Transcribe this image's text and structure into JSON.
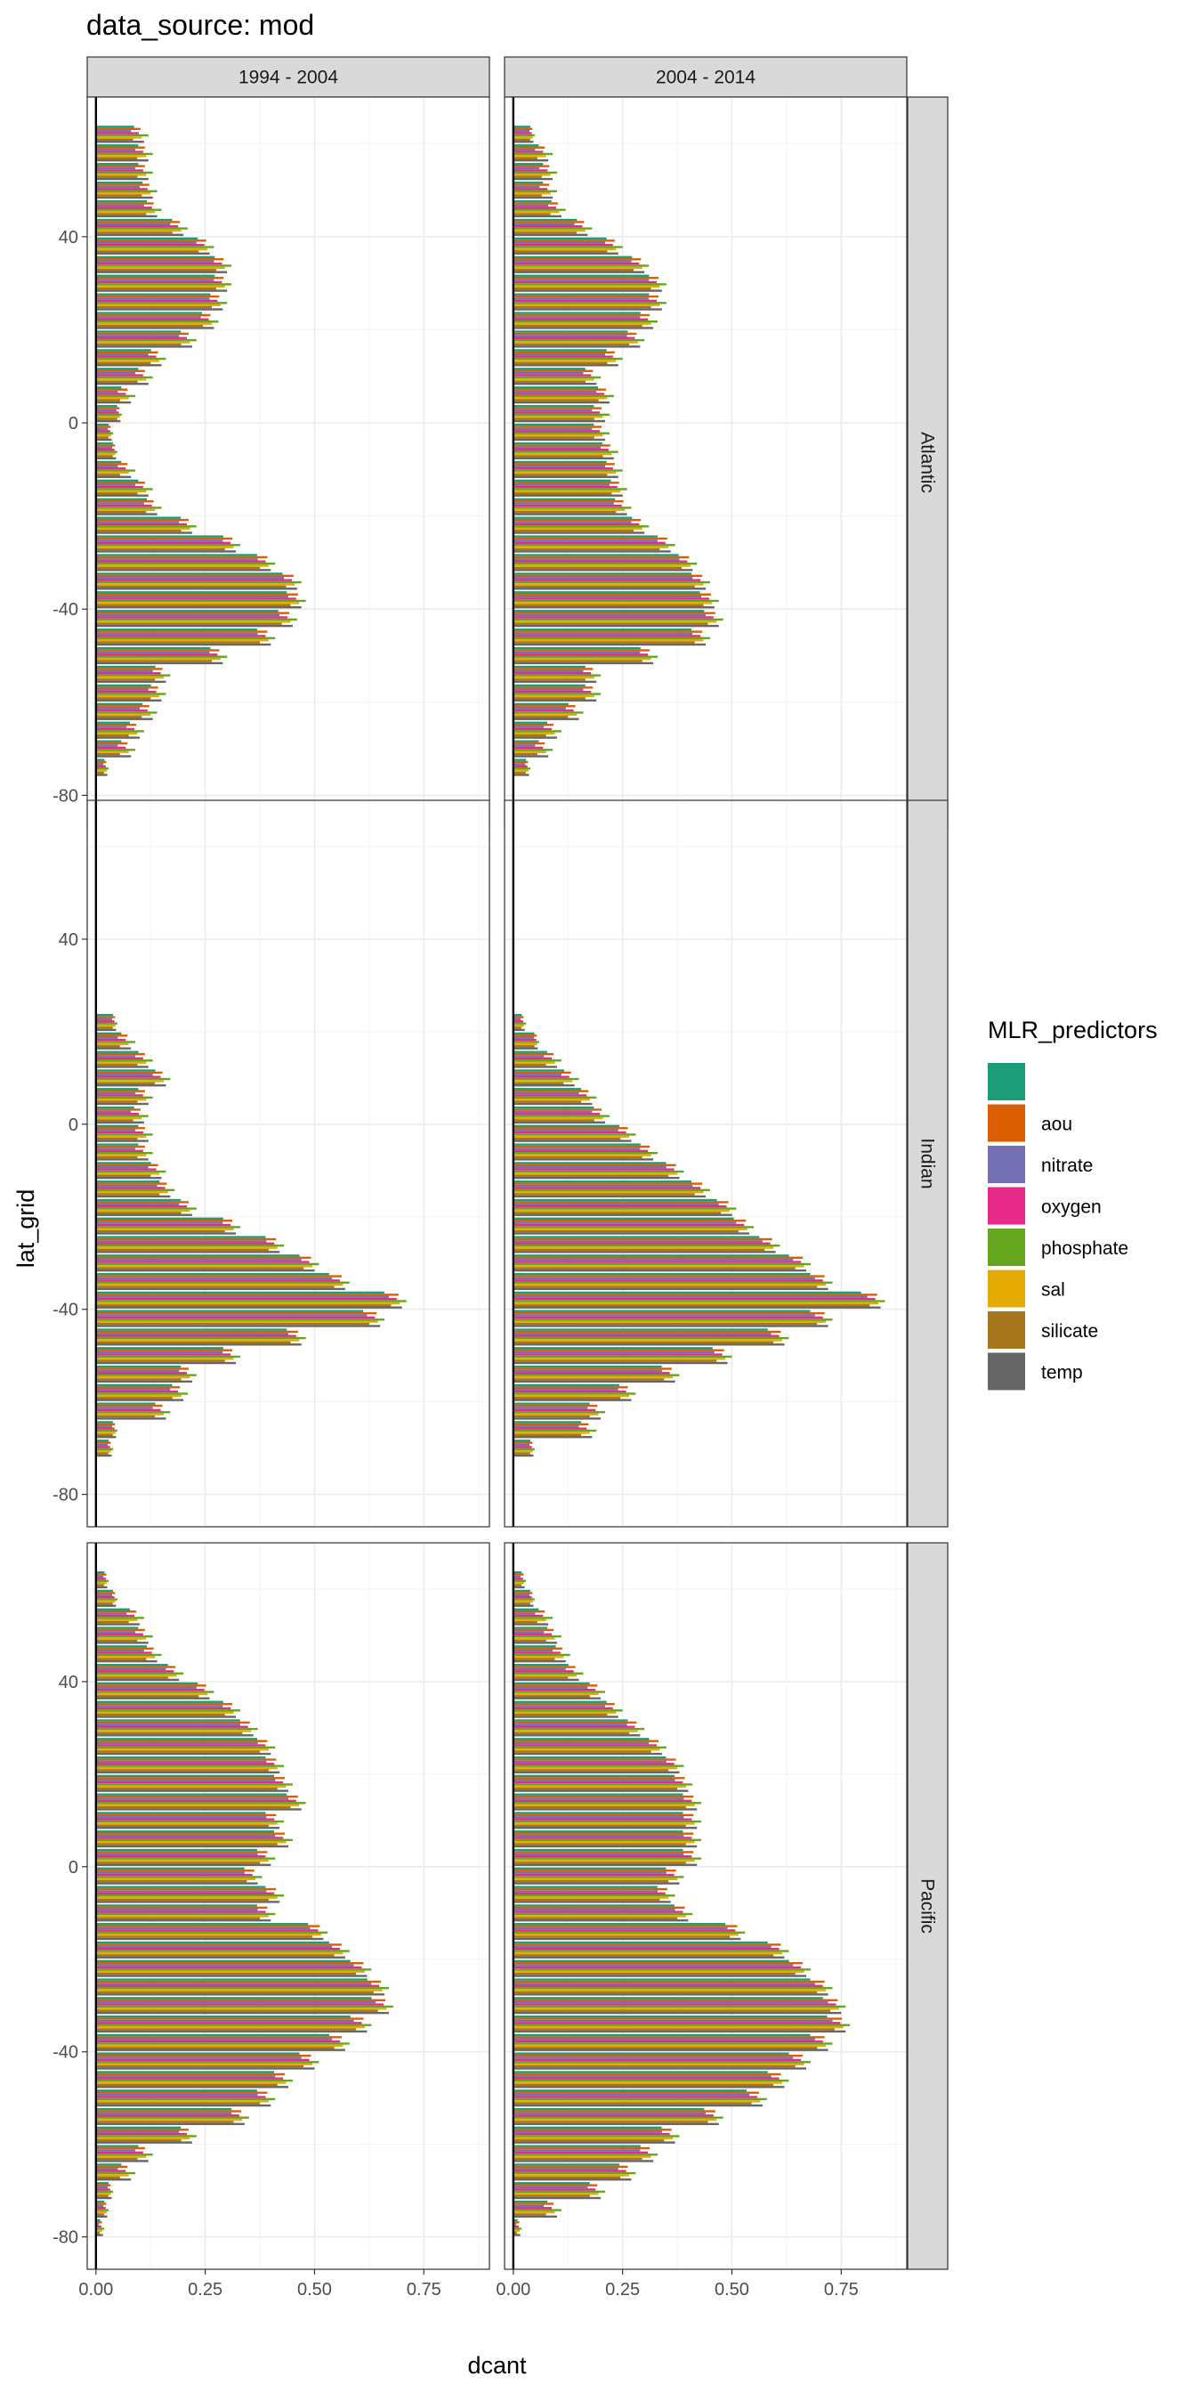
{
  "title": "data_source: mod",
  "chart_data": {
    "type": "bar",
    "orientation": "horizontal",
    "xlabel": "dcant",
    "ylabel": "lat_grid",
    "xlim": [
      -0.02,
      0.9
    ],
    "ylim": [
      -87,
      70
    ],
    "x_ticks": [
      0,
      0.25,
      0.5,
      0.75
    ],
    "x_tick_labels": [
      "0.00",
      "0.25",
      "0.50",
      "0.75"
    ],
    "y_ticks": [
      -80,
      -40,
      0,
      40
    ],
    "y_tick_labels": [
      "-80",
      "-40",
      "0",
      "40"
    ],
    "grid": true,
    "columns": [
      "1994 - 2004",
      "2004 - 2014"
    ],
    "rows": [
      "Atlantic",
      "Indian",
      "Pacific"
    ],
    "legend": {
      "title": "MLR_predictors",
      "position": "right",
      "entries": [
        {
          "label": "",
          "color": "#1B9E77"
        },
        {
          "label": "aou",
          "color": "#D95F02"
        },
        {
          "label": "nitrate",
          "color": "#7570B3"
        },
        {
          "label": "oxygen",
          "color": "#E7298A"
        },
        {
          "label": "phosphate",
          "color": "#66A61E"
        },
        {
          "label": "sal",
          "color": "#E6AB02"
        },
        {
          "label": "silicate",
          "color": "#A6761D"
        },
        {
          "label": "temp",
          "color": "#666666"
        }
      ]
    },
    "lat_bins": [
      62,
      58,
      54,
      50,
      46,
      42,
      38,
      34,
      30,
      26,
      22,
      18,
      14,
      10,
      6,
      2,
      -2,
      -6,
      -10,
      -14,
      -18,
      -22,
      -26,
      -30,
      -34,
      -38,
      -42,
      -46,
      -50,
      -54,
      -58,
      -62,
      -66,
      -70,
      -74
    ],
    "profiles": {
      "Atlantic|1994 - 2004": {
        "lat": [
          62,
          58,
          54,
          50,
          46,
          42,
          38,
          34,
          30,
          26,
          22,
          18,
          14,
          10,
          6,
          2,
          -2,
          -6,
          -10,
          -14,
          -18,
          -22,
          -26,
          -30,
          -34,
          -38,
          -42,
          -46,
          -50,
          -54,
          -58,
          -62,
          -66,
          -70,
          -74
        ],
        "values": [
          0.09,
          0.1,
          0.1,
          0.11,
          0.12,
          0.18,
          0.24,
          0.28,
          0.28,
          0.27,
          0.25,
          0.2,
          0.13,
          0.1,
          0.06,
          0.05,
          0.03,
          0.04,
          0.06,
          0.1,
          0.12,
          0.2,
          0.3,
          0.38,
          0.44,
          0.45,
          0.43,
          0.38,
          0.27,
          0.14,
          0.13,
          0.11,
          0.08,
          0.06,
          0.02
        ]
      },
      "Atlantic|2004 - 2014": {
        "lat": [
          62,
          58,
          54,
          50,
          46,
          42,
          38,
          34,
          30,
          26,
          22,
          18,
          14,
          10,
          6,
          2,
          -2,
          -6,
          -10,
          -14,
          -18,
          -22,
          -26,
          -30,
          -34,
          -38,
          -42,
          -46,
          -50,
          -54,
          -58,
          -62,
          -66,
          -70,
          -74
        ],
        "values": [
          0.04,
          0.06,
          0.07,
          0.07,
          0.09,
          0.15,
          0.22,
          0.28,
          0.32,
          0.32,
          0.3,
          0.27,
          0.22,
          0.17,
          0.2,
          0.19,
          0.19,
          0.21,
          0.22,
          0.23,
          0.24,
          0.28,
          0.34,
          0.39,
          0.42,
          0.44,
          0.45,
          0.42,
          0.3,
          0.17,
          0.17,
          0.13,
          0.08,
          0.06,
          0.03
        ]
      },
      "Indian|1994 - 2004": {
        "lat": [
          22,
          18,
          14,
          10,
          6,
          2,
          -2,
          -6,
          -10,
          -14,
          -18,
          -22,
          -26,
          -30,
          -34,
          -38,
          -42,
          -46,
          -50,
          -54,
          -58,
          -62,
          -66,
          -70
        ],
        "values": [
          0.04,
          0.06,
          0.1,
          0.14,
          0.1,
          0.09,
          0.1,
          0.1,
          0.13,
          0.15,
          0.2,
          0.3,
          0.4,
          0.48,
          0.55,
          0.68,
          0.63,
          0.45,
          0.3,
          0.2,
          0.18,
          0.14,
          0.04,
          0.03
        ]
      },
      "Indian|2004 - 2014": {
        "lat": [
          22,
          18,
          14,
          10,
          6,
          2,
          -2,
          -6,
          -10,
          -14,
          -18,
          -22,
          -26,
          -30,
          -34,
          -38,
          -42,
          -46,
          -50,
          -54,
          -58,
          -62,
          -66,
          -70
        ],
        "values": [
          0.02,
          0.05,
          0.08,
          0.12,
          0.16,
          0.19,
          0.25,
          0.3,
          0.36,
          0.42,
          0.48,
          0.52,
          0.58,
          0.65,
          0.7,
          0.82,
          0.7,
          0.6,
          0.47,
          0.35,
          0.25,
          0.18,
          0.16,
          0.04
        ]
      },
      "Pacific|1994 - 2004": {
        "lat": [
          62,
          58,
          54,
          50,
          46,
          42,
          38,
          34,
          30,
          26,
          22,
          18,
          14,
          10,
          6,
          2,
          -2,
          -6,
          -10,
          -14,
          -18,
          -22,
          -26,
          -30,
          -34,
          -38,
          -42,
          -46,
          -50,
          -54,
          -58,
          -62,
          -66,
          -70,
          -74,
          -78
        ],
        "values": [
          0.02,
          0.04,
          0.08,
          0.1,
          0.12,
          0.17,
          0.24,
          0.3,
          0.34,
          0.38,
          0.4,
          0.42,
          0.45,
          0.4,
          0.42,
          0.38,
          0.35,
          0.4,
          0.38,
          0.5,
          0.55,
          0.6,
          0.64,
          0.65,
          0.6,
          0.55,
          0.48,
          0.42,
          0.38,
          0.32,
          0.2,
          0.1,
          0.06,
          0.03,
          0.02,
          0.01
        ]
      },
      "Pacific|2004 - 2014": {
        "lat": [
          62,
          58,
          54,
          50,
          46,
          42,
          38,
          34,
          30,
          26,
          22,
          18,
          14,
          10,
          6,
          2,
          -2,
          -6,
          -10,
          -14,
          -18,
          -22,
          -26,
          -30,
          -34,
          -38,
          -42,
          -46,
          -50,
          -54,
          -58,
          -62,
          -66,
          -70,
          -74,
          -78
        ],
        "values": [
          0.02,
          0.04,
          0.06,
          0.08,
          0.1,
          0.13,
          0.18,
          0.22,
          0.27,
          0.32,
          0.36,
          0.38,
          0.4,
          0.4,
          0.4,
          0.4,
          0.36,
          0.34,
          0.38,
          0.5,
          0.6,
          0.65,
          0.7,
          0.73,
          0.74,
          0.7,
          0.65,
          0.6,
          0.55,
          0.45,
          0.35,
          0.3,
          0.25,
          0.18,
          0.08,
          0.01
        ]
      }
    },
    "predictor_offsets": [
      0.0,
      0.012,
      -0.01,
      0.008,
      0.03,
      0.015,
      -0.005,
      0.02
    ]
  }
}
